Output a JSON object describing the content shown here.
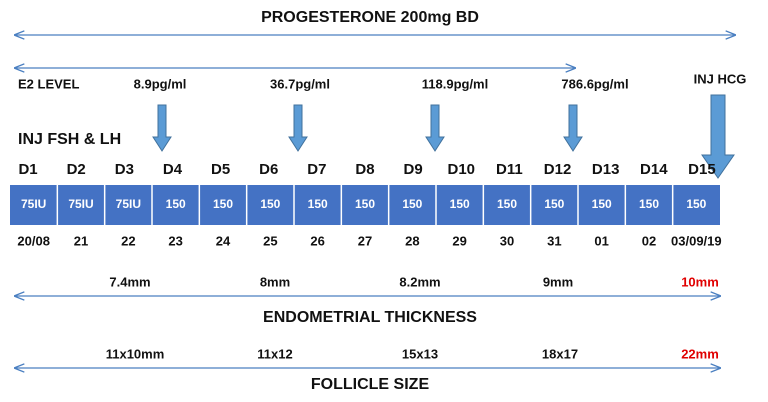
{
  "header": {
    "title": "PROGESTERONE 200mg BD"
  },
  "e2": {
    "label": "E2 LEVEL",
    "values": [
      "8.9pg/ml",
      "36.7pg/ml",
      "118.9pg/ml",
      "786.6pg/ml"
    ]
  },
  "hcg": {
    "label": "INJ HCG"
  },
  "injection": {
    "label": "INJ FSH & LH"
  },
  "days": [
    "D1",
    "D2",
    "D3",
    "D4",
    "D5",
    "D6",
    "D7",
    "D8",
    "D9",
    "D10",
    "D11",
    "D12",
    "D13",
    "D14",
    "D15"
  ],
  "doses": [
    "75IU",
    "75IU",
    "75IU",
    "150",
    "150",
    "150",
    "150",
    "150",
    "150",
    "150",
    "150",
    "150",
    "150",
    "150",
    "150"
  ],
  "dates": [
    "20/08",
    "21",
    "22",
    "23",
    "24",
    "25",
    "26",
    "27",
    "28",
    "29",
    "30",
    "31",
    "01",
    "02",
    "03/09/19"
  ],
  "endometrium": {
    "label": "ENDOMETRIAL THICKNESS",
    "values": [
      "7.4mm",
      "8mm",
      "8.2mm",
      "9mm",
      "10mm"
    ]
  },
  "follicle": {
    "label": "FOLLICLE SIZE",
    "values": [
      "11x10mm",
      "11x12",
      "15x13",
      "18x17",
      "22mm"
    ]
  }
}
